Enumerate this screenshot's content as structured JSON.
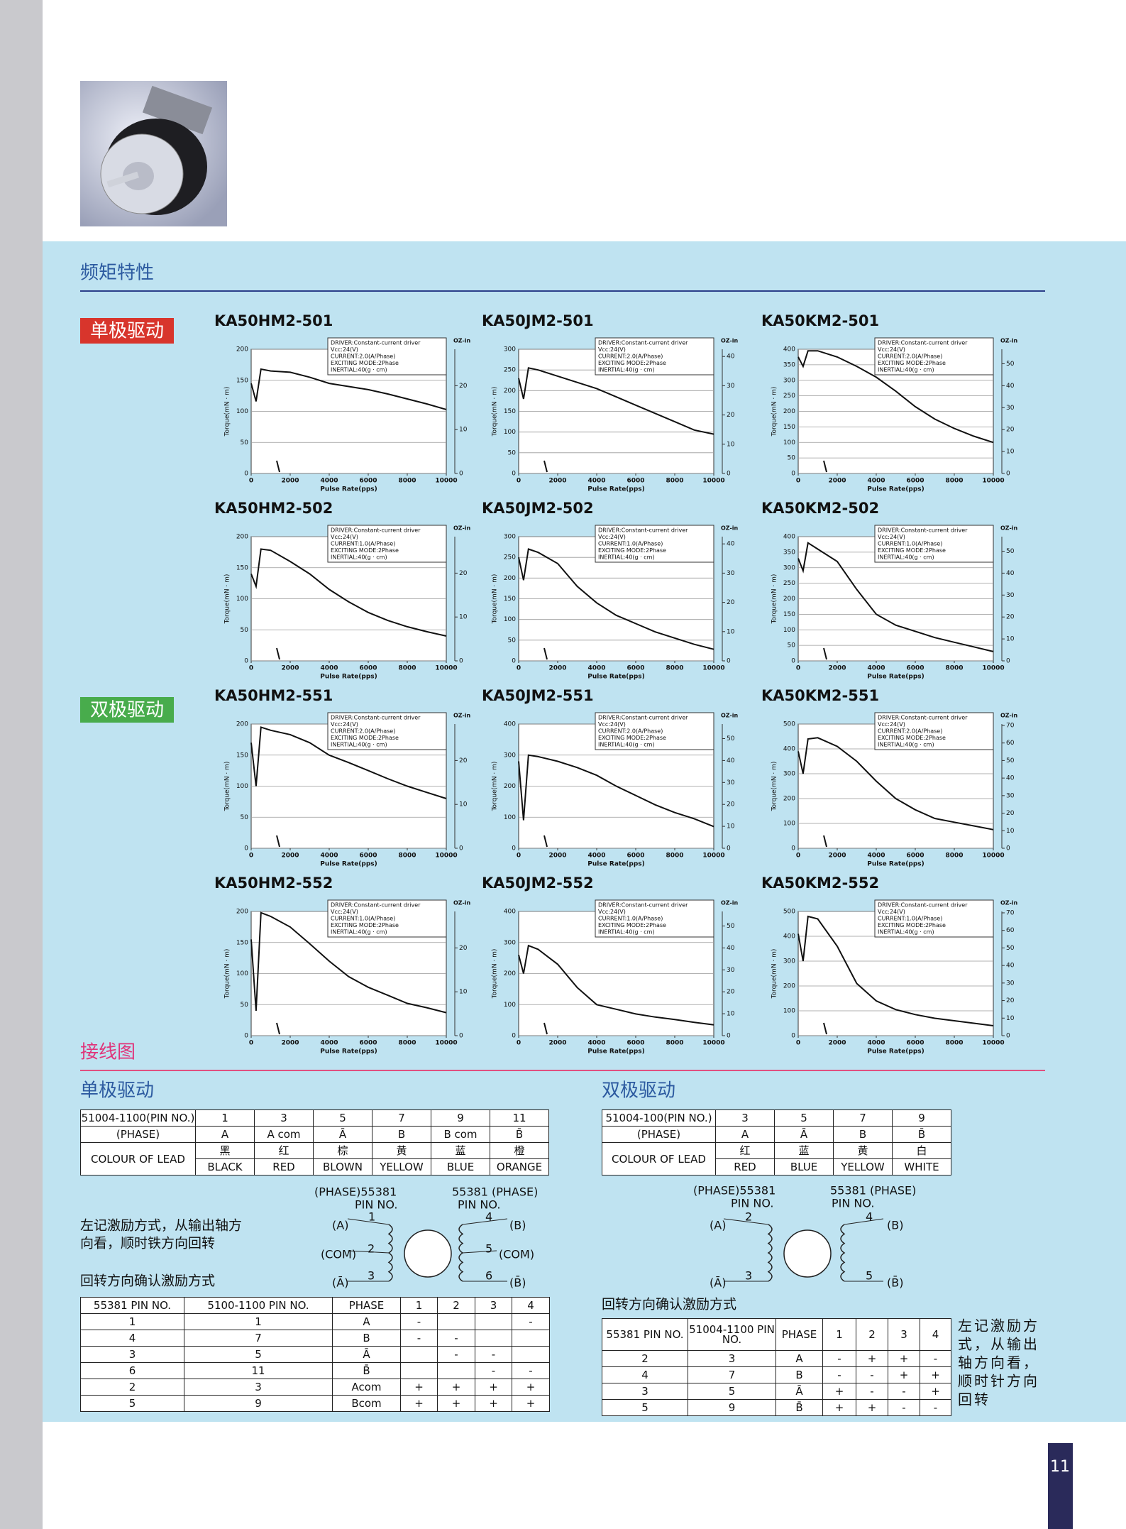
{
  "header": {
    "section1": "频矩特性",
    "unipolar_badge": "单极驱动",
    "bipolar_badge": "双极驱动",
    "section2": "接线图",
    "page_number": "11"
  },
  "chart_data": [
    {
      "type": "line",
      "title": "KA50HM2-501",
      "notes": [
        "DRIVER:Constant-current driver",
        "Vcc:24(V)",
        "CURRENT:2.0(A/Phase)",
        "EXCITING MODE:2Phase",
        "INERTIAL:40(g · cm)"
      ],
      "x_label": "Pulse Rate(pps)",
      "y_label": "Torque(mN · m)",
      "y2_label": "OZ-in",
      "x": [
        0,
        250,
        500,
        1000,
        2000,
        3000,
        4000,
        5000,
        6000,
        7000,
        8000,
        9000,
        10000
      ],
      "values": [
        145,
        116,
        168,
        165,
        163,
        155,
        145,
        140,
        135,
        128,
        120,
        112,
        103
      ],
      "color": "#111111",
      "xlim": [
        0,
        10000
      ],
      "xticks": [
        0,
        2000,
        4000,
        6000,
        8000,
        10000
      ],
      "ylim": [
        0,
        200
      ],
      "yticks": [
        0,
        50,
        100,
        150,
        200
      ],
      "y2lim": [
        0,
        28.32
      ],
      "y2ticks": [
        0,
        10,
        20
      ],
      "grid": true
    },
    {
      "type": "line",
      "title": "KA50JM2-501",
      "notes": [
        "DRIVER:Constant-current driver",
        "Vcc:24(V)",
        "CURRENT:2.0(A/Phase)",
        "EXCITING MODE:2Phase",
        "INERTIAL:40(g · cm)"
      ],
      "x_label": "Pulse Rate(pps)",
      "y_label": "Torque(mN · m)",
      "y2_label": "OZ-in",
      "x": [
        0,
        250,
        500,
        1000,
        2000,
        3000,
        4000,
        5000,
        6000,
        7000,
        8000,
        9000,
        10000
      ],
      "values": [
        230,
        180,
        255,
        250,
        235,
        220,
        205,
        185,
        165,
        145,
        125,
        105,
        95
      ],
      "color": "#111111",
      "xlim": [
        0,
        10000
      ],
      "xticks": [
        0,
        2000,
        4000,
        6000,
        8000,
        10000
      ],
      "ylim": [
        0,
        300
      ],
      "yticks": [
        0,
        50,
        100,
        150,
        200,
        250,
        300
      ],
      "y2lim": [
        0,
        42.48
      ],
      "y2ticks": [
        0,
        10,
        20,
        30,
        40
      ],
      "grid": true
    },
    {
      "type": "line",
      "title": "KA50KM2-501",
      "notes": [
        "DRIVER:Constant-current driver",
        "Vcc:24(V)",
        "CURRENT:2.0(A/Phase)",
        "EXCITING MODE:2Phase",
        "INERTIAL:40(g · cm)"
      ],
      "x_label": "Pulse Rate(pps)",
      "y_label": "Torque(mN · m)",
      "y2_label": "OZ-in",
      "x": [
        0,
        250,
        500,
        1000,
        2000,
        3000,
        4000,
        5000,
        6000,
        7000,
        8000,
        9000,
        10000
      ],
      "values": [
        375,
        345,
        395,
        395,
        375,
        345,
        310,
        265,
        215,
        175,
        145,
        120,
        100
      ],
      "color": "#111111",
      "xlim": [
        0,
        10000
      ],
      "xticks": [
        0,
        2000,
        4000,
        6000,
        8000,
        10000
      ],
      "ylim": [
        0,
        400
      ],
      "yticks": [
        0,
        50,
        100,
        150,
        200,
        250,
        300,
        350,
        400
      ],
      "y2lim": [
        0,
        56.64
      ],
      "y2ticks": [
        0,
        10,
        20,
        30,
        40,
        50
      ],
      "grid": true
    },
    {
      "type": "line",
      "title": "KA50HM2-502",
      "notes": [
        "DRIVER:Constant-current driver",
        "Vcc:24(V)",
        "CURRENT:1.0(A/Phase)",
        "EXCITING MODE:2Phase",
        "INERTIAL:40(g · cm)"
      ],
      "x_label": "Pulse Rate(pps)",
      "y_label": "Torque(mN · m)",
      "y2_label": "OZ-in",
      "x": [
        0,
        250,
        500,
        1000,
        2000,
        3000,
        4000,
        5000,
        6000,
        7000,
        8000,
        9000,
        10000
      ],
      "values": [
        140,
        120,
        180,
        178,
        160,
        140,
        115,
        95,
        78,
        65,
        55,
        47,
        40
      ],
      "color": "#111111",
      "xlim": [
        0,
        10000
      ],
      "xticks": [
        0,
        2000,
        4000,
        6000,
        8000,
        10000
      ],
      "ylim": [
        0,
        200
      ],
      "yticks": [
        0,
        50,
        100,
        150,
        200
      ],
      "y2lim": [
        0,
        28.32
      ],
      "y2ticks": [
        0,
        10,
        20
      ],
      "grid": true
    },
    {
      "type": "line",
      "title": "KA50JM2-502",
      "notes": [
        "DRIVER:Constant-current driver",
        "Vcc:24(V)",
        "CURRENT:1.0(A/Phase)",
        "EXCITING MODE:2Phase",
        "INERTIAL:40(g · cm)"
      ],
      "x_label": "Pulse Rate(pps)",
      "y_label": "Torque(mN · m)",
      "y2_label": "OZ-in",
      "x": [
        0,
        250,
        500,
        1000,
        2000,
        3000,
        4000,
        5000,
        6000,
        7000,
        8000,
        9000,
        10000
      ],
      "values": [
        250,
        195,
        270,
        262,
        235,
        180,
        140,
        110,
        90,
        70,
        55,
        40,
        28
      ],
      "color": "#111111",
      "xlim": [
        0,
        10000
      ],
      "xticks": [
        0,
        2000,
        4000,
        6000,
        8000,
        10000
      ],
      "ylim": [
        0,
        300
      ],
      "yticks": [
        0,
        50,
        100,
        150,
        200,
        250,
        300
      ],
      "y2lim": [
        0,
        42.48
      ],
      "y2ticks": [
        0,
        10,
        20,
        30,
        40
      ],
      "grid": true
    },
    {
      "type": "line",
      "title": "KA50KM2-502",
      "notes": [
        "DRIVER:Constant-current driver",
        "Vcc:24(V)",
        "CURRENT:1.0(A/Phase)",
        "EXCITING MODE:2Phase",
        "INERTIAL:40(g · cm)"
      ],
      "x_label": "Pulse Rate(pps)",
      "y_label": "Torque(mN · m)",
      "y2_label": "OZ-in",
      "x": [
        0,
        250,
        500,
        1000,
        2000,
        3000,
        4000,
        5000,
        6000,
        7000,
        8000,
        9000,
        10000
      ],
      "values": [
        330,
        290,
        380,
        360,
        320,
        230,
        150,
        115,
        95,
        75,
        60,
        45,
        30
      ],
      "color": "#111111",
      "xlim": [
        0,
        10000
      ],
      "xticks": [
        0,
        2000,
        4000,
        6000,
        8000,
        10000
      ],
      "ylim": [
        0,
        400
      ],
      "yticks": [
        0,
        50,
        100,
        150,
        200,
        250,
        300,
        350,
        400
      ],
      "y2lim": [
        0,
        56.64
      ],
      "y2ticks": [
        0,
        10,
        20,
        30,
        40,
        50
      ],
      "grid": true
    },
    {
      "type": "line",
      "title": "KA50HM2-551",
      "notes": [
        "DRIVER:Constant-current driver",
        "Vcc:24(V)",
        "CURRENT:2.0(A/Phase)",
        "EXCITING MODE:2Phase",
        "INERTIAL:40(g · cm)"
      ],
      "x_label": "Pulse Rate(pps)",
      "y_label": "Torque(mN · m)",
      "y2_label": "OZ-in",
      "x": [
        0,
        250,
        500,
        1000,
        2000,
        3000,
        4000,
        5000,
        6000,
        7000,
        8000,
        9000,
        10000
      ],
      "values": [
        170,
        100,
        195,
        190,
        183,
        170,
        150,
        138,
        125,
        112,
        100,
        90,
        80
      ],
      "color": "#111111",
      "xlim": [
        0,
        10000
      ],
      "xticks": [
        0,
        2000,
        4000,
        6000,
        8000,
        10000
      ],
      "ylim": [
        0,
        200
      ],
      "yticks": [
        0,
        50,
        100,
        150,
        200
      ],
      "y2lim": [
        0,
        28.32
      ],
      "y2ticks": [
        0,
        10,
        20
      ],
      "grid": true
    },
    {
      "type": "line",
      "title": "KA50JM2-551",
      "notes": [
        "DRIVER:Constant-current driver",
        "Vcc:24(V)",
        "CURRENT:2.0(A/Phase)",
        "EXCITING MODE:2Phase",
        "INERTIAL:40(g · cm)"
      ],
      "x_label": "Pulse Rate(pps)",
      "y_label": "Torque(mN · m)",
      "y2_label": "OZ-in",
      "x": [
        0,
        250,
        500,
        1000,
        2000,
        3000,
        4000,
        5000,
        6000,
        7000,
        8000,
        9000,
        10000
      ],
      "values": [
        280,
        90,
        300,
        295,
        280,
        260,
        235,
        200,
        170,
        140,
        115,
        95,
        70
      ],
      "color": "#111111",
      "xlim": [
        0,
        10000
      ],
      "xticks": [
        0,
        2000,
        4000,
        6000,
        8000,
        10000
      ],
      "ylim": [
        0,
        400
      ],
      "yticks": [
        0,
        100,
        200,
        300,
        400
      ],
      "y2lim": [
        0,
        56.64
      ],
      "y2ticks": [
        0,
        10,
        20,
        30,
        40,
        50
      ],
      "grid": true
    },
    {
      "type": "line",
      "title": "KA50KM2-551",
      "notes": [
        "DRIVER:Constant-current driver",
        "Vcc:24(V)",
        "CURRENT:2.0(A/Phase)",
        "EXCITING MODE:2Phase",
        "INERTIAL:40(g · cm)"
      ],
      "x_label": "Pulse Rate(pps)",
      "y_label": "Torque(mN · m)",
      "y2_label": "OZ-in",
      "x": [
        0,
        250,
        500,
        1000,
        2000,
        3000,
        4000,
        5000,
        6000,
        7000,
        8000,
        9000,
        10000
      ],
      "values": [
        390,
        300,
        440,
        445,
        410,
        350,
        270,
        200,
        155,
        120,
        105,
        90,
        75
      ],
      "color": "#111111",
      "xlim": [
        0,
        10000
      ],
      "xticks": [
        0,
        2000,
        4000,
        6000,
        8000,
        10000
      ],
      "ylim": [
        0,
        500
      ],
      "yticks": [
        0,
        100,
        200,
        300,
        400,
        500
      ],
      "y2lim": [
        0,
        70.8
      ],
      "y2ticks": [
        0,
        10,
        20,
        30,
        40,
        50,
        60,
        70
      ],
      "grid": true
    },
    {
      "type": "line",
      "title": "KA50HM2-552",
      "notes": [
        "DRIVER:Constant-current driver",
        "Vcc:24(V)",
        "CURRENT:1.0(A/Phase)",
        "EXCITING MODE:2Phase",
        "INERTIAL:40(g · cm)"
      ],
      "x_label": "Pulse Rate(pps)",
      "y_label": "Torque(mN · m)",
      "y2_label": "OZ-in",
      "x": [
        0,
        250,
        500,
        1000,
        2000,
        3000,
        4000,
        5000,
        6000,
        7000,
        8000,
        9000,
        10000
      ],
      "values": [
        155,
        40,
        198,
        192,
        175,
        148,
        120,
        95,
        78,
        65,
        52,
        45,
        37
      ],
      "color": "#111111",
      "xlim": [
        0,
        10000
      ],
      "xticks": [
        0,
        2000,
        4000,
        6000,
        8000,
        10000
      ],
      "ylim": [
        0,
        200
      ],
      "yticks": [
        0,
        50,
        100,
        150,
        200
      ],
      "y2lim": [
        0,
        28.32
      ],
      "y2ticks": [
        0,
        10,
        20
      ],
      "grid": true
    },
    {
      "type": "line",
      "title": "KA50JM2-552",
      "notes": [
        "DRIVER:Constant-current driver",
        "Vcc:24(V)",
        "CURRENT:1.0(A/Phase)",
        "EXCITING MODE:2Phase",
        "INERTIAL:40(g · cm)"
      ],
      "x_label": "Pulse Rate(pps)",
      "y_label": "Torque(mN · m)",
      "y2_label": "OZ-in",
      "x": [
        0,
        250,
        500,
        1000,
        2000,
        3000,
        4000,
        5000,
        6000,
        7000,
        8000,
        9000,
        10000
      ],
      "values": [
        260,
        200,
        290,
        278,
        230,
        155,
        100,
        85,
        70,
        60,
        52,
        43,
        35
      ],
      "color": "#111111",
      "xlim": [
        0,
        10000
      ],
      "xticks": [
        0,
        2000,
        4000,
        6000,
        8000,
        10000
      ],
      "ylim": [
        0,
        400
      ],
      "yticks": [
        0,
        100,
        200,
        300,
        400
      ],
      "y2lim": [
        0,
        56.64
      ],
      "y2ticks": [
        0,
        10,
        20,
        30,
        40,
        50
      ],
      "grid": true
    },
    {
      "type": "line",
      "title": "KA50KM2-552",
      "notes": [
        "DRIVER:Constant-current driver",
        "Vcc:24(V)",
        "CURRENT:1.0(A/Phase)",
        "EXCITING MODE:2Phase",
        "INERTIAL:40(g · cm)"
      ],
      "x_label": "Pulse Rate(pps)",
      "y_label": "Torque(mN · m)",
      "y2_label": "OZ-in",
      "x": [
        0,
        250,
        500,
        1000,
        2000,
        3000,
        4000,
        5000,
        6000,
        7000,
        8000,
        9000,
        10000
      ],
      "values": [
        410,
        300,
        480,
        470,
        360,
        210,
        140,
        105,
        85,
        70,
        60,
        50,
        40
      ],
      "color": "#111111",
      "xlim": [
        0,
        10000
      ],
      "xticks": [
        0,
        2000,
        4000,
        6000,
        8000,
        10000
      ],
      "ylim": [
        0,
        500
      ],
      "yticks": [
        0,
        100,
        200,
        300,
        400,
        500
      ],
      "y2lim": [
        0,
        70.8
      ],
      "y2ticks": [
        0,
        10,
        20,
        30,
        40,
        50,
        60,
        70
      ],
      "grid": true
    }
  ],
  "wiring": {
    "unipolar": {
      "heading": "单极驱动",
      "lead_table": {
        "pin_header": [
          "51004-1100(PIN NO.)",
          "1",
          "3",
          "5",
          "7",
          "9",
          "11"
        ],
        "phase_row": [
          "(PHASE)",
          "A",
          "A com",
          "Ā",
          "B",
          "B com",
          "B̄"
        ],
        "colour_label": "COLOUR OF LEAD",
        "colour_cn": [
          "黑",
          "红",
          "棕",
          "黄",
          "蓝",
          "橙"
        ],
        "colour_en": [
          "BLACK",
          "RED",
          "BLOWN",
          "YELLOW",
          "BLUE",
          "ORANGE"
        ]
      },
      "description": [
        "左记激励方式，从输出轴方",
        "向看，顺时铁方向回转"
      ],
      "diagram_labels": [
        "(PHASE)55381",
        "PIN NO.",
        "55381 (PHASE)",
        "PIN NO.",
        "(A)",
        "1",
        "4",
        "(B)",
        "(COM)",
        "2",
        "5",
        "(COM)",
        "(Ā)",
        "3",
        "6",
        "(B̄)"
      ],
      "sequence_caption": "回转方向确认激励方式",
      "sequence_table": {
        "header": [
          "55381 PIN NO.",
          "5100-1100 PIN NO.",
          "PHASE",
          "1",
          "2",
          "3",
          "4"
        ],
        "rows": [
          [
            "1",
            "1",
            "A",
            "-",
            null,
            null,
            "-"
          ],
          [
            "4",
            "7",
            "B",
            "-",
            "-",
            null,
            null
          ],
          [
            "3",
            "5",
            "Ā",
            null,
            "-",
            "-",
            null
          ],
          [
            "6",
            "11",
            "B̄",
            null,
            null,
            "-",
            "-"
          ],
          [
            "2",
            "3",
            "Acom",
            "+",
            "+",
            "+",
            "+"
          ],
          [
            "5",
            "9",
            "Bcom",
            "+",
            "+",
            "+",
            "+"
          ]
        ]
      }
    },
    "bipolar": {
      "heading": "双极驱动",
      "lead_table": {
        "pin_header": [
          "51004-100(PIN NO.)",
          "3",
          "5",
          "7",
          "9"
        ],
        "phase_row": [
          "(PHASE)",
          "A",
          "Ā",
          "B",
          "B̄"
        ],
        "colour_label": "COLOUR OF LEAD",
        "colour_cn": [
          "红",
          "蓝",
          "黄",
          "白"
        ],
        "colour_en": [
          "RED",
          "BLUE",
          "YELLOW",
          "WHITE"
        ]
      },
      "diagram_labels": [
        "(PHASE)55381",
        "PIN NO.",
        "55381 (PHASE)",
        "PIN NO.",
        "(A)",
        "2",
        "4",
        "(B)",
        "(Ā)",
        "3",
        "5",
        "(B̄)"
      ],
      "sequence_caption": "回转方向确认激励方式",
      "sequence_table": {
        "header": [
          "55381 PIN NO.",
          "51004-1100 PIN NO.",
          "PHASE",
          "1",
          "2",
          "3",
          "4"
        ],
        "rows": [
          [
            "2",
            "3",
            "A",
            "-",
            "+",
            "+",
            "-"
          ],
          [
            "4",
            "7",
            "B",
            "-",
            "-",
            "+",
            "+"
          ],
          [
            "3",
            "5",
            "Ā",
            "+",
            "-",
            "-",
            "+"
          ],
          [
            "5",
            "9",
            "B̄",
            "+",
            "+",
            "-",
            "-"
          ]
        ]
      },
      "description": [
        "左记激励方",
        "式，从输出",
        "轴方向看，",
        "顺时针方向",
        "回转"
      ]
    }
  }
}
